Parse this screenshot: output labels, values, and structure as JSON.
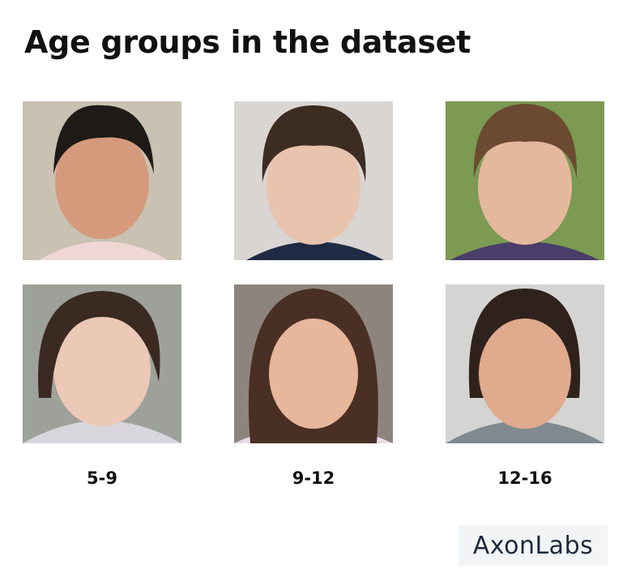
{
  "header": {
    "title": "Age groups in the dataset"
  },
  "columns": [
    {
      "label": "5-9"
    },
    {
      "label": "9-12"
    },
    {
      "label": "12-16"
    }
  ],
  "footer": {
    "logo": "AxonLabs"
  }
}
